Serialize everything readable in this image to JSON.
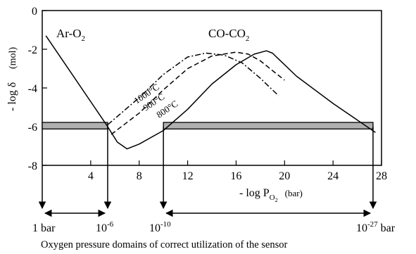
{
  "chart_data": {
    "type": "line",
    "xlabel_main": "- log P",
    "xlabel_sub": "O",
    "xlabel_sub2": "2",
    "xlabel_unit": "(bar)",
    "ylabel_main": "- log δ",
    "ylabel_unit": "(mol)",
    "xlim": [
      0,
      28
    ],
    "ylim": [
      -8,
      0
    ],
    "x_ticks": [
      4,
      8,
      12,
      16,
      20,
      24,
      28
    ],
    "x_tick_labels": [
      "4",
      "8",
      "12",
      "16",
      "20",
      "24",
      "28"
    ],
    "y_ticks": [
      0,
      -2,
      -4,
      -6,
      -8
    ],
    "y_tick_labels": [
      "0",
      "-2",
      "-4",
      "-6",
      "-8"
    ],
    "grid": false,
    "annotations": {
      "ar_main": "Ar-O",
      "ar_sub": "2",
      "co_main": "CO-CO",
      "co_sub": "2"
    },
    "series": [
      {
        "name": "800°C",
        "style": "solid",
        "x": [
          0.3,
          5.3,
          6.2,
          7.0,
          8.0,
          10.0,
          12.0,
          14.0,
          16.0,
          17.5,
          18.5,
          19.0,
          19.5,
          21.0,
          24.0,
          27.5
        ],
        "y": [
          -1.3,
          -5.9,
          -6.8,
          -7.15,
          -6.9,
          -6.2,
          -5.1,
          -3.8,
          -2.8,
          -2.25,
          -2.08,
          -2.2,
          -2.5,
          -3.4,
          -4.8,
          -6.3
        ]
      },
      {
        "name": "900°C",
        "style": "dashed",
        "x": [
          5.7,
          8.0,
          10.0,
          12.0,
          14.0,
          16.0,
          17.0,
          18.0,
          19.0,
          20.0
        ],
        "y": [
          -6.4,
          -5.3,
          -4.1,
          -3.0,
          -2.35,
          -2.15,
          -2.25,
          -2.6,
          -3.1,
          -3.6
        ]
      },
      {
        "name": "1000°C",
        "style": "dashdot",
        "x": [
          5.4,
          8.0,
          10.0,
          12.0,
          13.5,
          15.0,
          16.5,
          18.0,
          19.5
        ],
        "y": [
          -5.9,
          -4.5,
          -3.3,
          -2.4,
          -2.2,
          -2.3,
          -2.7,
          -3.5,
          -4.4
        ]
      }
    ],
    "bands": [
      {
        "x_start": 0,
        "x_end": 5.4,
        "y_top": -5.78,
        "y_bottom": -6.12
      },
      {
        "x_start": 10,
        "x_end": 27.3,
        "y_top": -5.78,
        "y_bottom": -6.12
      }
    ],
    "domain_arrows": [
      {
        "x_data": 0,
        "label": "1 bar",
        "sup": ""
      },
      {
        "x_data": 5.4,
        "label": "10",
        "sup": "-6"
      },
      {
        "x_data": 10,
        "label": "10",
        "sup": "-10"
      },
      {
        "x_data": 27.3,
        "label": "10",
        "sup": "-27",
        "suffix": " bar"
      }
    ],
    "caption": "Oxygen pressure domains of correct utilization of the sensor"
  }
}
